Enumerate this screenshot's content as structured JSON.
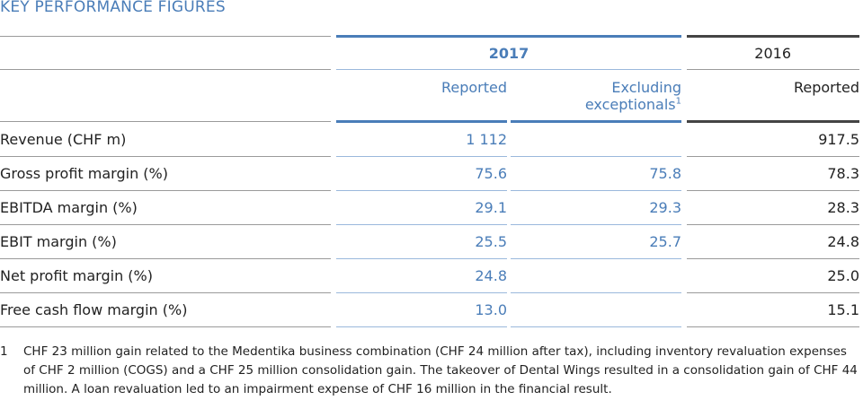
{
  "title": "KEY PERFORMANCE FIGURES",
  "header": {
    "year_current": "2017",
    "year_prior": "2016",
    "col_reported": "Reported",
    "col_excl_line1": "Excluding",
    "col_excl_line2": "exceptionals",
    "col_excl_sup": "1",
    "col_prior_reported": "Reported"
  },
  "rows": [
    {
      "label": "Revenue (CHF m)",
      "reported": "1 112",
      "excluding": "",
      "prior": "917.5"
    },
    {
      "label": "Gross profit margin (%)",
      "reported": "75.6",
      "excluding": "75.8",
      "prior": "78.3"
    },
    {
      "label": "EBITDA margin (%)",
      "reported": "29.1",
      "excluding": "29.3",
      "prior": "28.3"
    },
    {
      "label": "EBIT margin (%)",
      "reported": "25.5",
      "excluding": "25.7",
      "prior": "24.8"
    },
    {
      "label": "Net profit margin (%)",
      "reported": "24.8",
      "excluding": "",
      "prior": "25.0"
    },
    {
      "label": "Free cash flow margin (%)",
      "reported": "13.0",
      "excluding": "",
      "prior": "15.1"
    }
  ],
  "footnote": {
    "number": "1",
    "text": "CHF 23 million gain related to the Medentika business combination (CHF 24 million after tax), including inventory revaluation expenses of CHF 2 million (COGS) and a CHF 25 million consolidation gain. The takeover of Dental Wings resulted in a consolidation gain of CHF 44 million. A loan revaluation led to an impairment expense of CHF 16 million in the financial result."
  }
}
